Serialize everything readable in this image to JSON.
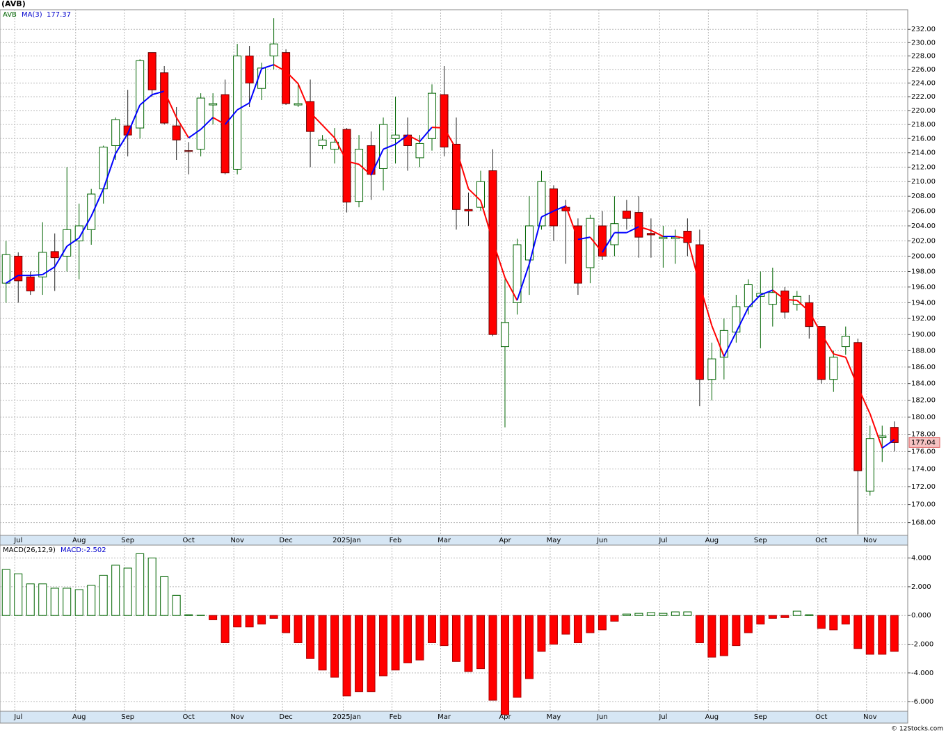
{
  "chart_data": [
    {
      "type": "candlestick",
      "title": "(AVB)",
      "symbol": "AVB",
      "ma_name": "MA(3)",
      "ma_value_text": "177.37",
      "last_price": 177.04,
      "log_scale": true,
      "grid": true,
      "up_color": "#006400",
      "down_color": "#ff0000",
      "ma_up_color": "#0000ff",
      "ma_down_color": "#ff0000",
      "categories": [
        null,
        "Jul",
        null,
        null,
        null,
        null,
        "Aug",
        null,
        null,
        null,
        "Sep",
        null,
        null,
        null,
        null,
        "Oct",
        null,
        null,
        null,
        "Nov",
        null,
        null,
        null,
        "Dec",
        null,
        null,
        null,
        null,
        "2025Jan",
        null,
        null,
        null,
        "Feb",
        null,
        null,
        null,
        "Mar",
        null,
        null,
        null,
        null,
        "Apr",
        null,
        null,
        null,
        "May",
        null,
        null,
        null,
        "Jun",
        null,
        null,
        null,
        null,
        "Jul",
        null,
        null,
        null,
        "Aug",
        null,
        null,
        null,
        "Sep",
        null,
        null,
        null,
        null,
        "Oct",
        null,
        null,
        null,
        "Nov",
        null,
        null
      ],
      "open": [
        196.5,
        200,
        197.3,
        197.3,
        200.6,
        200,
        202,
        203.5,
        209,
        215,
        217.8,
        217.5,
        228.5,
        225.5,
        217.8,
        214.3,
        214.5,
        220.8,
        222.3,
        211.7,
        228,
        223.2,
        228,
        228.5,
        220.8,
        221.3,
        215,
        214.5,
        217.3,
        207.3,
        215,
        211.8,
        216,
        216.5,
        213.3,
        216,
        222.3,
        215.2,
        206.2,
        206.5,
        211.5,
        188.5,
        194,
        199.5,
        204,
        209,
        206.5,
        204,
        198.5,
        204,
        201.5,
        206,
        205.8,
        203,
        202.3,
        202.3,
        203.3,
        201.5,
        184.5,
        187.2,
        190.3,
        193.5,
        194.8,
        193.8,
        195.5,
        193.8,
        194,
        191,
        184.5,
        188.5,
        189,
        171.5,
        177.6,
        178.8
      ],
      "high": [
        202,
        200.5,
        198,
        204.5,
        203,
        212,
        207,
        209,
        215,
        219,
        223,
        227.5,
        228.5,
        226.5,
        220.5,
        215.5,
        222.5,
        222.5,
        224.5,
        229.8,
        229.5,
        227,
        233.7,
        229,
        224,
        224.5,
        216.5,
        217.5,
        217.5,
        216.5,
        217,
        219,
        222,
        219,
        216.5,
        223.8,
        226.5,
        219,
        208.5,
        211.5,
        214.5,
        197,
        202.3,
        208,
        211.5,
        209.5,
        207.5,
        205,
        205.5,
        206,
        208,
        207.5,
        208,
        205,
        204,
        203.5,
        205,
        203.5,
        189,
        192,
        195,
        197,
        198,
        198.5,
        196,
        195.5,
        195,
        191,
        188,
        191,
        189.5,
        179,
        179,
        179.5
      ],
      "low": [
        194,
        194,
        195,
        195,
        195.5,
        198,
        197,
        201.5,
        207,
        213,
        213.5,
        216,
        222,
        218,
        213,
        211,
        213.5,
        218,
        211,
        211,
        220.5,
        221.5,
        226,
        220.8,
        220.5,
        212,
        214.5,
        212.5,
        205.8,
        206.5,
        207.5,
        208.8,
        212.5,
        211.5,
        212,
        214.3,
        213.5,
        203.5,
        204,
        206,
        189.8,
        178.8,
        192.5,
        195,
        203.5,
        202,
        199,
        195,
        196.5,
        199.5,
        200,
        203.5,
        199.8,
        199.8,
        198.5,
        199,
        200,
        181.3,
        182,
        184.5,
        189,
        192.5,
        188.3,
        191,
        192,
        193,
        189.5,
        184,
        183,
        187.5,
        166.7,
        171,
        174.8,
        176
      ],
      "close": [
        200.2,
        196.8,
        195.5,
        200.5,
        199.8,
        203.5,
        204,
        208.3,
        214.8,
        218.7,
        216.5,
        227.3,
        223,
        218.2,
        215.8,
        214.2,
        221.8,
        221,
        211.2,
        228,
        224,
        226.2,
        229.8,
        221,
        221,
        217,
        215.8,
        215.5,
        207.2,
        214.5,
        211,
        218,
        216.5,
        215,
        215.3,
        222.5,
        214.8,
        206.2,
        206,
        210,
        190,
        191.5,
        201.5,
        204,
        210,
        204,
        206,
        196.5,
        205,
        200,
        204.3,
        205,
        202.5,
        202.8,
        202.5,
        202.5,
        201.8,
        184.5,
        187,
        190.5,
        193.5,
        196.3,
        195.2,
        195.3,
        192.8,
        194.8,
        191,
        184.5,
        187.2,
        189.8,
        173.8,
        177.5,
        177.8,
        177.04
      ],
      "ma": [
        196.5,
        197.5,
        197.5,
        197.6,
        198.6,
        201.3,
        202.4,
        205.3,
        209,
        213.9,
        216.7,
        220.8,
        222.3,
        222.8,
        219,
        216.1,
        217.3,
        219,
        218,
        220.1,
        221.1,
        226.1,
        226.7,
        225.7,
        223.9,
        219.7,
        217.9,
        216.1,
        212.8,
        212.4,
        210.9,
        214.5,
        215.2,
        216.5,
        215.6,
        217.6,
        217.5,
        214.5,
        209,
        207.4,
        202,
        197.2,
        194.3,
        199,
        205.2,
        206,
        206.7,
        202.2,
        202.5,
        200.5,
        203.1,
        203.1,
        203.9,
        203.4,
        202.6,
        202.6,
        202.3,
        196.3,
        191.1,
        187.3,
        190.3,
        193.4,
        195,
        195.6,
        194.4,
        194.3,
        192.9,
        190.1,
        187.6,
        187.2,
        183.6,
        180.4,
        176.4,
        177.37
      ],
      "ylim": [
        166.6,
        235
      ],
      "yticks": [
        {
          "value": 168,
          "label": "168.00"
        },
        {
          "value": 170,
          "label": "170.00"
        },
        {
          "value": 172,
          "label": "172.00"
        },
        {
          "value": 174,
          "label": "174.00"
        },
        {
          "value": 176,
          "label": "176.00"
        },
        {
          "value": 178,
          "label": "178.00"
        },
        {
          "value": 180,
          "label": "180.00"
        },
        {
          "value": 182,
          "label": "182.00"
        },
        {
          "value": 184,
          "label": "184.00"
        },
        {
          "value": 186,
          "label": "186.00"
        },
        {
          "value": 188,
          "label": "188.00"
        },
        {
          "value": 190,
          "label": "190.00"
        },
        {
          "value": 192,
          "label": "192.00"
        },
        {
          "value": 194,
          "label": "194.00"
        },
        {
          "value": 196,
          "label": "196.00"
        },
        {
          "value": 198,
          "label": "198.00"
        },
        {
          "value": 200,
          "label": "200.00"
        },
        {
          "value": 202,
          "label": "202.00"
        },
        {
          "value": 204,
          "label": "204.00"
        },
        {
          "value": 206,
          "label": "206.00"
        },
        {
          "value": 208,
          "label": "208.00"
        },
        {
          "value": 210,
          "label": "210.00"
        },
        {
          "value": 212,
          "label": "212.00"
        },
        {
          "value": 214,
          "label": "214.00"
        },
        {
          "value": 216,
          "label": "216.00"
        },
        {
          "value": 218,
          "label": "218.00"
        },
        {
          "value": 220,
          "label": "220.00"
        },
        {
          "value": 222,
          "label": "222.00"
        },
        {
          "value": 224,
          "label": "224.00"
        },
        {
          "value": 226,
          "label": "226.00"
        },
        {
          "value": 228,
          "label": "228.00"
        },
        {
          "value": 230,
          "label": "230.00"
        },
        {
          "value": 232,
          "label": "232.00"
        }
      ]
    },
    {
      "type": "macd_histogram",
      "title": "MACD(26,12,9)",
      "value_text": "MACD:-2.502",
      "grid": true,
      "up_color": "#006400",
      "down_color": "#ff0000",
      "credit": "© 12Stocks.com",
      "categories": [
        null,
        "Jul",
        null,
        null,
        null,
        null,
        "Aug",
        null,
        null,
        null,
        "Sep",
        null,
        null,
        null,
        null,
        "Oct",
        null,
        null,
        null,
        "Nov",
        null,
        null,
        null,
        "Dec",
        null,
        null,
        null,
        null,
        "2025Jan",
        null,
        null,
        null,
        "Feb",
        null,
        null,
        null,
        "Mar",
        null,
        null,
        null,
        null,
        "Apr",
        null,
        null,
        null,
        "May",
        null,
        null,
        null,
        "Jun",
        null,
        null,
        null,
        null,
        "Jul",
        null,
        null,
        null,
        "Aug",
        null,
        null,
        null,
        "Sep",
        null,
        null,
        null,
        null,
        "Oct",
        null,
        null,
        null,
        "Nov",
        null,
        null
      ],
      "values": [
        3.2,
        2.9,
        2.2,
        2.2,
        1.9,
        1.9,
        1.8,
        2.1,
        2.8,
        3.5,
        3.3,
        4.3,
        4,
        2.7,
        1.4,
        0.05,
        0.02,
        -0.3,
        -1.9,
        -0.8,
        -0.8,
        -0.6,
        -0.2,
        -1.2,
        -1.9,
        -3,
        -3.8,
        -4.3,
        -5.6,
        -5.3,
        -5.3,
        -4.2,
        -3.8,
        -3.3,
        -3.1,
        -1.9,
        -2.1,
        -3.2,
        -3.9,
        -3.7,
        -5.9,
        -6.9,
        -5.7,
        -4.4,
        -2.5,
        -2,
        -1.3,
        -1.9,
        -1.2,
        -1,
        -0.4,
        0.1,
        0.15,
        0.2,
        0.15,
        0.25,
        0.25,
        -1.9,
        -2.9,
        -2.8,
        -2.1,
        -1.2,
        -0.6,
        -0.2,
        -0.15,
        0.3,
        0.05,
        -0.9,
        -1,
        -0.6,
        -2.3,
        -2.7,
        -2.7,
        -2.5
      ],
      "ylim": [
        -6.67,
        4.9
      ],
      "yticks": [
        {
          "value": -6,
          "label": "-6.000"
        },
        {
          "value": -4,
          "label": "-4.000"
        },
        {
          "value": -2,
          "label": "-2.000"
        },
        {
          "value": 0,
          "label": "0.000"
        },
        {
          "value": 2,
          "label": "2.000"
        },
        {
          "value": 4,
          "label": "4.000"
        }
      ]
    }
  ]
}
